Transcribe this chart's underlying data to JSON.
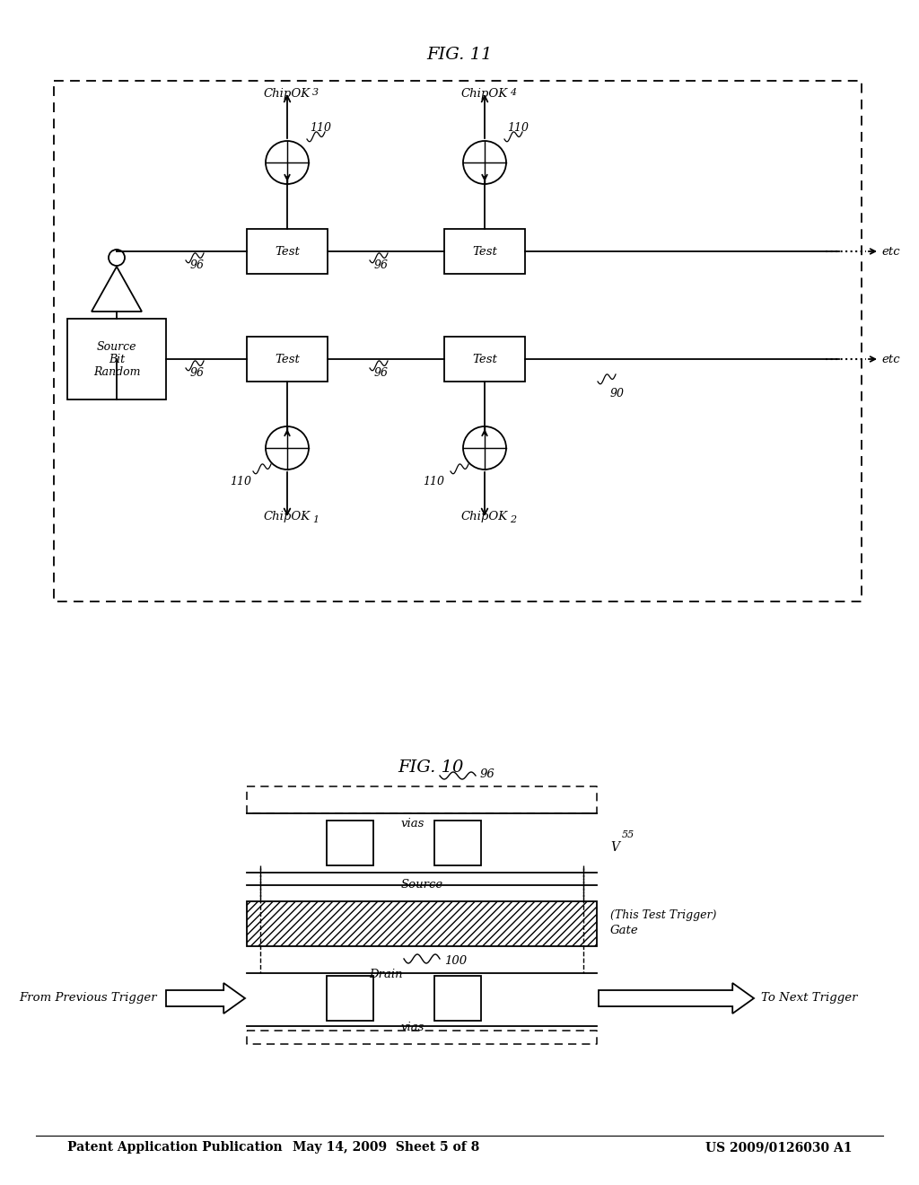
{
  "bg_color": "#ffffff",
  "header_left": "Patent Application Publication",
  "header_center": "May 14, 2009  Sheet 5 of 8",
  "header_right": "US 2009/0126030 A1",
  "fig10_label": "FIG. 10",
  "fig11_label": "FIG. 11"
}
